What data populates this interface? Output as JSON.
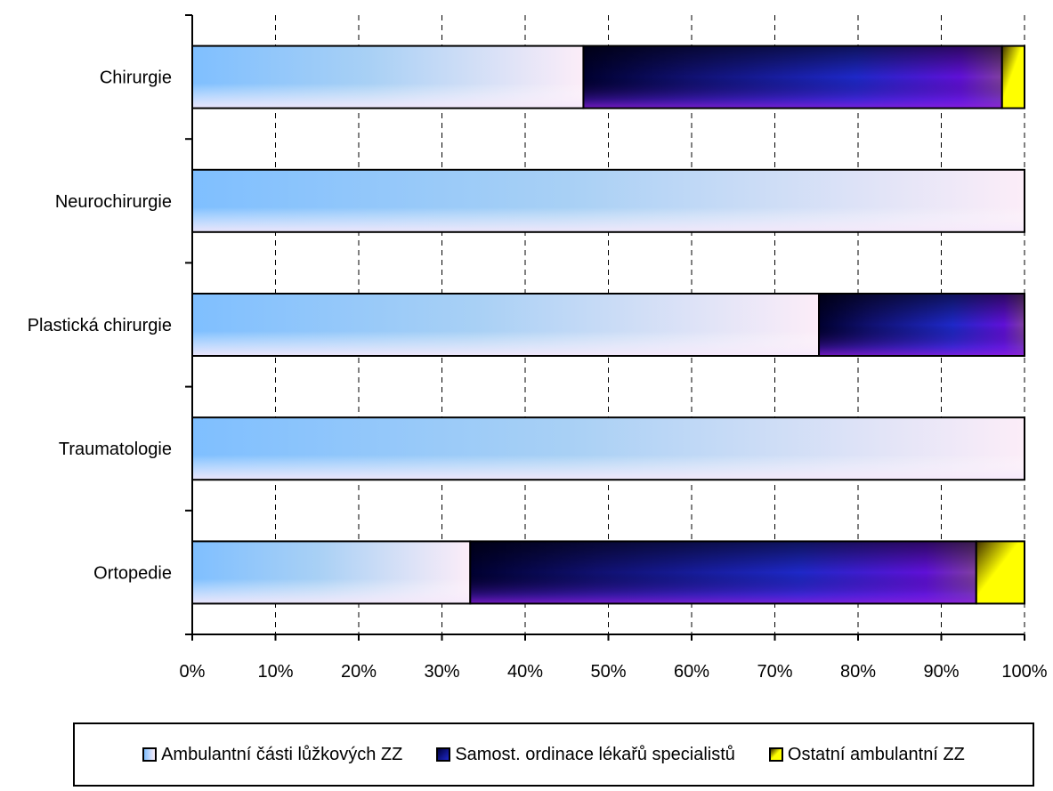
{
  "chart_data": {
    "type": "bar",
    "orientation": "horizontal",
    "stacked": "percent",
    "categories": [
      "Chirurgie",
      "Neurochirurgie",
      "Plastická chirurgie",
      "Traumatologie",
      "Ortopedie"
    ],
    "series": [
      {
        "name": "Ambulantní části lůžkových ZZ",
        "values": [
          47,
          100,
          75.3,
          100,
          33.4
        ],
        "color": "#8ec5ff"
      },
      {
        "name": "Samost. ordinace lékařů specialistů",
        "values": [
          50.3,
          0,
          24.7,
          0,
          60.8
        ],
        "color": "#1a1aa0"
      },
      {
        "name": "Ostatní ambulantní ZZ",
        "values": [
          2.7,
          0,
          0,
          0,
          5.8
        ],
        "color": "#ffff00"
      }
    ],
    "x_ticks": [
      "0%",
      "10%",
      "20%",
      "30%",
      "40%",
      "50%",
      "60%",
      "70%",
      "80%",
      "90%",
      "100%"
    ],
    "xlim": [
      0,
      100
    ],
    "grid": "vertical dashed",
    "legend_position": "bottom"
  }
}
